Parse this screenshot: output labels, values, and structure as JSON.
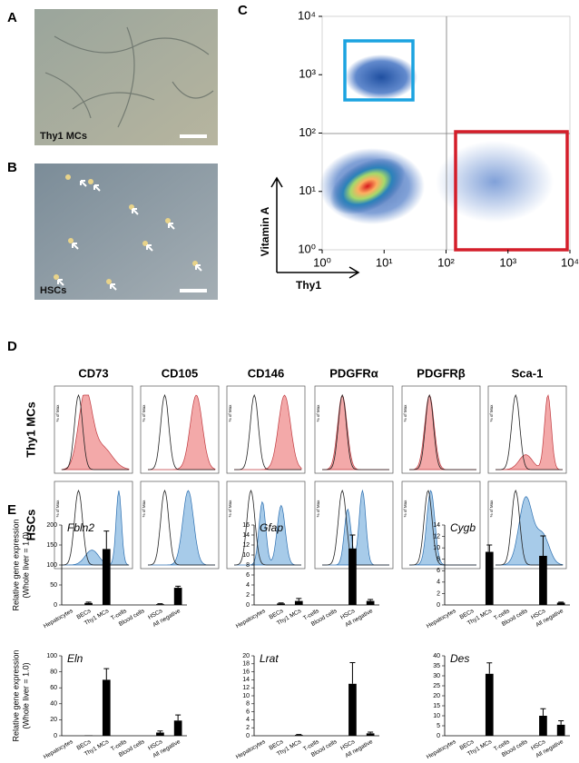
{
  "panel_labels": [
    "A",
    "B",
    "C",
    "D",
    "E"
  ],
  "panel_a": {
    "caption": "Thy1 MCs"
  },
  "panel_b": {
    "caption": "HSCs"
  },
  "panel_c": {
    "x_label": "Thy1",
    "y_label": "Vitamin A",
    "log_scale": true,
    "xlim": [
      1,
      10000
    ],
    "ylim": [
      1,
      10000
    ],
    "xticks": [
      {
        "value": 1,
        "label": "10⁰"
      },
      {
        "value": 10,
        "label": "10¹"
      },
      {
        "value": 100,
        "label": "10²"
      },
      {
        "value": 1000,
        "label": "10³"
      },
      {
        "value": 10000,
        "label": "10⁴"
      }
    ],
    "yticks": [
      {
        "value": 1,
        "label": "10⁰"
      },
      {
        "value": 10,
        "label": "10¹"
      },
      {
        "value": 100,
        "label": "10²"
      },
      {
        "value": 1000,
        "label": "10³"
      },
      {
        "value": 10000,
        "label": "10⁴"
      }
    ]
  },
  "panel_d": {
    "markers": [
      "CD73",
      "CD105",
      "CD146",
      "PDGFRα",
      "PDGFRβ",
      "Sca-1"
    ],
    "rows": [
      "Thy1 MCs",
      "HSCs"
    ],
    "y_label": "% of Max"
  },
  "panel_e": {
    "y_label": [
      "Relative gene expression",
      "(Whole liver = 1.0)"
    ],
    "categories": [
      "Hepatocytes",
      "BECs",
      "Thy1 MCs",
      "T-cells",
      "Blood cells",
      "HSCs",
      "All negative"
    ],
    "color": "#000000",
    "charts": [
      {
        "type": "bar",
        "gene": "Fbln2",
        "ylim": [
          0,
          200
        ],
        "yticks": [
          0,
          50,
          100,
          150,
          200
        ],
        "values": [
          0,
          5,
          140,
          0,
          0,
          2,
          43
        ],
        "errors": [
          0,
          2,
          45,
          0,
          0,
          1,
          4
        ]
      },
      {
        "type": "bar",
        "gene": "Gfap",
        "ylim": [
          0,
          16
        ],
        "yticks": [
          0,
          2,
          4,
          6,
          8,
          10,
          12,
          14,
          16
        ],
        "values": [
          0,
          0.3,
          0.8,
          0,
          0,
          11.3,
          0.8
        ],
        "errors": [
          0,
          0.1,
          0.5,
          0,
          0,
          2.7,
          0.3
        ]
      },
      {
        "type": "bar",
        "gene": "Cygb",
        "ylim": [
          0,
          14
        ],
        "yticks": [
          0,
          2,
          4,
          6,
          8,
          10,
          12,
          14
        ],
        "values": [
          0,
          0,
          9.3,
          0,
          0,
          8.6,
          0.4
        ],
        "errors": [
          0,
          0,
          1.2,
          0,
          0,
          3.5,
          0.1
        ]
      },
      {
        "type": "bar",
        "gene": "Eln",
        "ylim": [
          0,
          100
        ],
        "yticks": [
          0,
          20,
          40,
          60,
          80,
          100
        ],
        "values": [
          0,
          0.5,
          70,
          0,
          0,
          4,
          19
        ],
        "errors": [
          0,
          0,
          14,
          0,
          0,
          2,
          7
        ]
      },
      {
        "type": "bar",
        "gene": "Lrat",
        "ylim": [
          0,
          20
        ],
        "yticks": [
          0,
          2,
          4,
          6,
          8,
          10,
          12,
          14,
          16,
          18,
          20
        ],
        "values": [
          0,
          0,
          0.2,
          0,
          0,
          13,
          0.6
        ],
        "errors": [
          0,
          0,
          0.1,
          0,
          0,
          5.3,
          0.3
        ]
      },
      {
        "type": "bar",
        "gene": "Des",
        "ylim": [
          0,
          40
        ],
        "yticks": [
          0,
          5,
          10,
          15,
          20,
          25,
          30,
          35,
          40
        ],
        "values": [
          0,
          0,
          31,
          0,
          0,
          10,
          5.5
        ],
        "errors": [
          0,
          0,
          5.5,
          0,
          0,
          3.5,
          2
        ]
      }
    ]
  }
}
